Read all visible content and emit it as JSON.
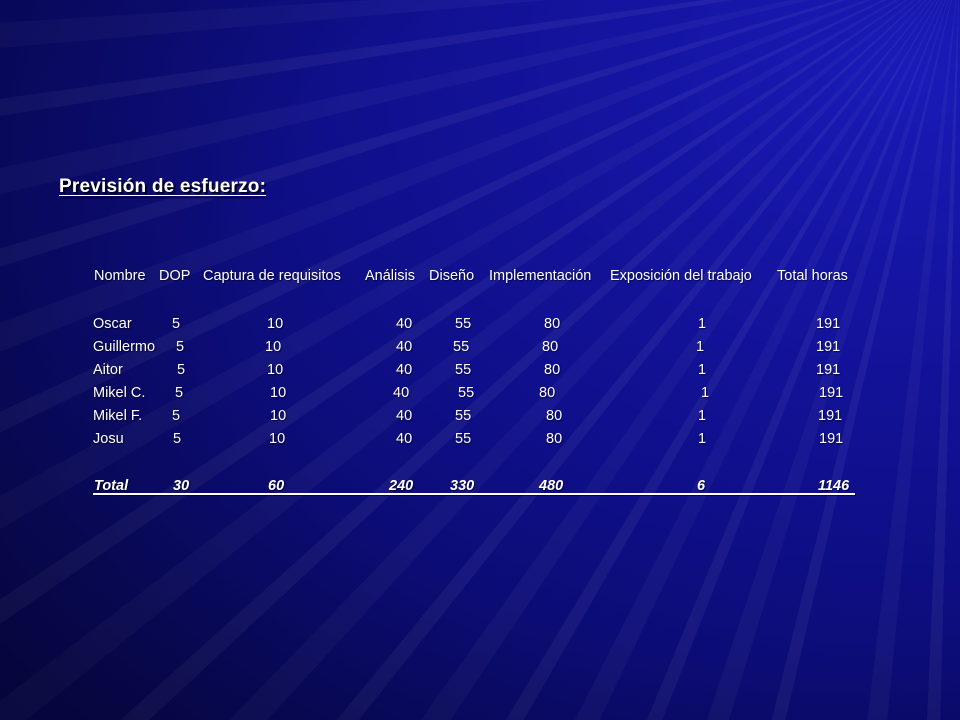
{
  "title": "Previsión de esfuerzo:",
  "headers": [
    "Nombre",
    "DOP",
    "Captura de requisitos",
    "Análisis",
    "Diseño",
    "Implementación",
    "Exposición del trabajo",
    "Total horas"
  ],
  "rows": [
    {
      "nombre": "Oscar",
      "dop": "5",
      "captura": "10",
      "analisis": "40",
      "diseno": "55",
      "implementacion": "80",
      "exposicion": "1",
      "total": "191"
    },
    {
      "nombre": "Guillermo",
      "dop": "5",
      "captura": "10",
      "analisis": "40",
      "diseno": "55",
      "implementacion": "80",
      "exposicion": "1",
      "total": "191"
    },
    {
      "nombre": "Aitor",
      "dop": "5",
      "captura": "10",
      "analisis": "40",
      "diseno": "55",
      "implementacion": "80",
      "exposicion": "1",
      "total": "191"
    },
    {
      "nombre": "Mikel C.",
      "dop": "5",
      "captura": "10",
      "analisis": "40",
      "diseno": "55",
      "implementacion": "80",
      "exposicion": "1",
      "total": "191"
    },
    {
      "nombre": "Mikel F.",
      "dop": "5",
      "captura": "10",
      "analisis": "40",
      "diseno": "55",
      "implementacion": "80",
      "exposicion": "1",
      "total": "191"
    },
    {
      "nombre": "Josu",
      "dop": "5",
      "captura": "10",
      "analisis": "40",
      "diseno": "55",
      "implementacion": "80",
      "exposicion": "1",
      "total": "191"
    }
  ],
  "totals": {
    "nombre": "Total",
    "dop": "30",
    "captura": "60",
    "analisis": "240",
    "diseno": "330",
    "implementacion": "480",
    "exposicion": "6",
    "total": "1146"
  },
  "colors": {
    "background": "#0f0f8a",
    "text": "#ffffff"
  }
}
